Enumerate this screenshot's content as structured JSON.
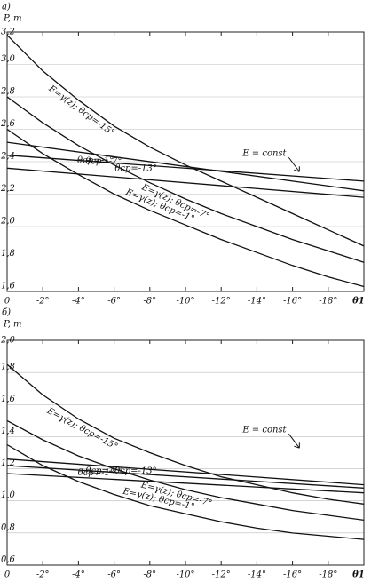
{
  "chart_data": [
    {
      "type": "line",
      "panel_label": "а)",
      "ylabel": "P, т",
      "xlabel": "θ1",
      "xlim": [
        0,
        -20
      ],
      "ylim": [
        1.6,
        3.2
      ],
      "grid": true,
      "color": "#111111",
      "xticks": [
        0,
        {
          "value": -2,
          "label": "-2°"
        },
        {
          "value": -4,
          "label": "-4°"
        },
        {
          "value": -6,
          "label": "-6°"
        },
        {
          "value": -8,
          "label": "-8°"
        },
        {
          "value": -10,
          "label": "-10°"
        },
        {
          "value": -12,
          "label": "-12°"
        },
        {
          "value": -14,
          "label": "-14°"
        },
        {
          "value": -16,
          "label": "-16°"
        },
        {
          "value": -18,
          "label": "-18°"
        }
      ],
      "yticks": [
        {
          "value": 1.6,
          "label": "1,6"
        },
        {
          "value": 1.8,
          "label": "1,8"
        },
        {
          "value": 2.0,
          "label": "2,0"
        },
        {
          "value": 2.2,
          "label": "2,2"
        },
        {
          "value": 2.4,
          "label": "2,4"
        },
        {
          "value": 2.6,
          "label": "2,6"
        },
        {
          "value": 2.8,
          "label": "2,8"
        },
        {
          "value": 3.0,
          "label": "3,0"
        },
        {
          "value": 3.2,
          "label": "3,2"
        }
      ],
      "annotation": "E = const",
      "series": [
        {
          "name": "E=γ(z); θср=-15°",
          "x": [
            0,
            -2,
            -4,
            -6,
            -8,
            -10,
            -12,
            -14,
            -16,
            -18,
            -20
          ],
          "values": [
            3.18,
            2.96,
            2.78,
            2.62,
            2.49,
            2.38,
            2.28,
            2.18,
            2.08,
            1.98,
            1.88
          ]
        },
        {
          "name": "E=γ(z); θср=-7°",
          "x": [
            0,
            -2,
            -4,
            -6,
            -8,
            -10,
            -12,
            -14,
            -16,
            -18,
            -20
          ],
          "values": [
            2.8,
            2.64,
            2.5,
            2.38,
            2.27,
            2.17,
            2.08,
            2.0,
            1.92,
            1.85,
            1.78
          ]
        },
        {
          "name": "E=γ(z); θср=-1°",
          "x": [
            0,
            -2,
            -4,
            -6,
            -8,
            -10,
            -12,
            -14,
            -16,
            -18,
            -20
          ],
          "values": [
            2.6,
            2.45,
            2.32,
            2.2,
            2.1,
            2.01,
            1.92,
            1.84,
            1.76,
            1.69,
            1.63
          ]
        },
        {
          "name": "θср=-1°",
          "x": [
            0,
            -20
          ],
          "values": [
            2.52,
            2.22
          ]
        },
        {
          "name": "θср=-7°",
          "x": [
            0,
            -20
          ],
          "values": [
            2.44,
            2.28
          ]
        },
        {
          "name": "θср=-13°",
          "x": [
            0,
            -20
          ],
          "values": [
            2.36,
            2.18
          ]
        }
      ]
    },
    {
      "type": "line",
      "panel_label": "б)",
      "ylabel": "P, т",
      "xlabel": "θ1",
      "xlim": [
        0,
        -20
      ],
      "ylim": [
        0.6,
        2.0
      ],
      "grid": true,
      "color": "#111111",
      "xticks": [
        0,
        {
          "value": -2,
          "label": "-2°"
        },
        {
          "value": -4,
          "label": "-4°"
        },
        {
          "value": -6,
          "label": "-6°"
        },
        {
          "value": -8,
          "label": "-8°"
        },
        {
          "value": -10,
          "label": "-10°"
        },
        {
          "value": -12,
          "label": "-12°"
        },
        {
          "value": -14,
          "label": "-14°"
        },
        {
          "value": -16,
          "label": "-16°"
        },
        {
          "value": -18,
          "label": "-18°"
        }
      ],
      "yticks": [
        {
          "value": 0.6,
          "label": "0,6"
        },
        {
          "value": 0.8,
          "label": "0,8"
        },
        {
          "value": 1.0,
          "label": "1,0"
        },
        {
          "value": 1.2,
          "label": "1,2"
        },
        {
          "value": 1.4,
          "label": "1,4"
        },
        {
          "value": 1.6,
          "label": "1,6"
        },
        {
          "value": 1.8,
          "label": "1,8"
        },
        {
          "value": 2.0,
          "label": "2,0"
        }
      ],
      "annotation": "E = const",
      "series": [
        {
          "name": "E=γ(z); θср=-15°",
          "x": [
            0,
            -2,
            -4,
            -6,
            -8,
            -10,
            -12,
            -14,
            -16,
            -18,
            -20
          ],
          "values": [
            1.85,
            1.66,
            1.51,
            1.39,
            1.3,
            1.22,
            1.15,
            1.1,
            1.05,
            1.01,
            0.98
          ]
        },
        {
          "name": "E=γ(z); θср=-7°",
          "x": [
            0,
            -2,
            -4,
            -6,
            -8,
            -10,
            -12,
            -14,
            -16,
            -18,
            -20
          ],
          "values": [
            1.5,
            1.38,
            1.28,
            1.2,
            1.13,
            1.07,
            1.02,
            0.98,
            0.94,
            0.91,
            0.88
          ]
        },
        {
          "name": "E=γ(z); θср=-1°",
          "x": [
            0,
            -2,
            -4,
            -6,
            -8,
            -10,
            -12,
            -14,
            -16,
            -18,
            -20
          ],
          "values": [
            1.35,
            1.22,
            1.12,
            1.04,
            0.97,
            0.92,
            0.87,
            0.83,
            0.8,
            0.78,
            0.76
          ]
        },
        {
          "name": "θср=-1°",
          "x": [
            0,
            -20
          ],
          "values": [
            1.26,
            1.1
          ]
        },
        {
          "name": "θср=-7°",
          "x": [
            0,
            -20
          ],
          "values": [
            1.22,
            1.08
          ]
        },
        {
          "name": "θср=-13°",
          "x": [
            0,
            -20
          ],
          "values": [
            1.17,
            1.05
          ]
        }
      ]
    }
  ]
}
